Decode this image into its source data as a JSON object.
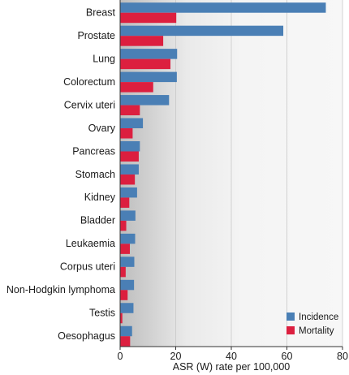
{
  "chart_data": {
    "type": "bar",
    "orientation": "horizontal",
    "categories": [
      "Breast",
      "Prostate",
      "Lung",
      "Colorectum",
      "Cervix uteri",
      "Ovary",
      "Pancreas",
      "Stomach",
      "Kidney",
      "Bladder",
      "Leukaemia",
      "Corpus uteri",
      "Non-Hodgkin lymphoma",
      "Testis",
      "Oesophagus"
    ],
    "series": [
      {
        "name": "Incidence",
        "color": "#4a7fb5",
        "values": [
          74.0,
          58.7,
          20.5,
          20.4,
          17.6,
          8.2,
          7.1,
          6.7,
          6.1,
          5.5,
          5.4,
          5.1,
          5.0,
          4.8,
          4.3
        ]
      },
      {
        "name": "Mortality",
        "color": "#dc1f3f",
        "values": [
          20.2,
          15.5,
          18.1,
          11.9,
          7.1,
          4.5,
          6.7,
          5.3,
          3.3,
          2.2,
          3.5,
          2.0,
          2.7,
          0.8,
          3.6
        ]
      }
    ],
    "xlabel": "ASR (W) rate per 100,000",
    "xlim": [
      0,
      80
    ],
    "xticks": [
      0,
      20,
      40,
      60,
      80
    ],
    "grid": true,
    "legend_position": "bottom-right"
  }
}
